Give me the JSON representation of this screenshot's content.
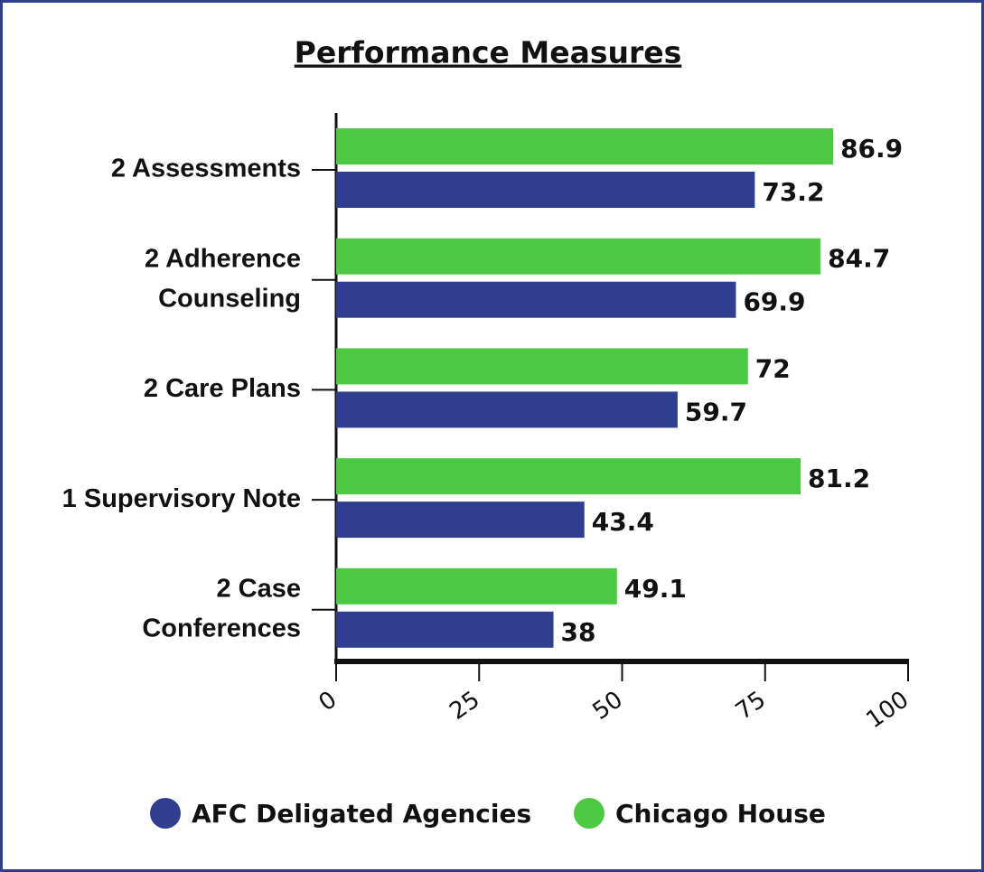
{
  "chart_data": {
    "type": "barh",
    "title": "Performance Measures",
    "categories": [
      [
        "2 Assessments"
      ],
      [
        "2 Adherence",
        "Counseling"
      ],
      [
        "2 Care Plans"
      ],
      [
        "1 Supervisory Note"
      ],
      [
        "2 Case",
        "Conferences"
      ]
    ],
    "series": [
      {
        "name": "AFC Deligated Agencies",
        "color": "#2f3e8f",
        "values": [
          73.2,
          69.9,
          59.7,
          43.4,
          38
        ]
      },
      {
        "name": "Chicago House",
        "color": "#4ec944",
        "values": [
          86.9,
          84.7,
          72,
          81.2,
          49.1
        ]
      }
    ],
    "xlim": [
      0,
      100
    ],
    "xticks": [
      0,
      25,
      50,
      75,
      100
    ]
  }
}
